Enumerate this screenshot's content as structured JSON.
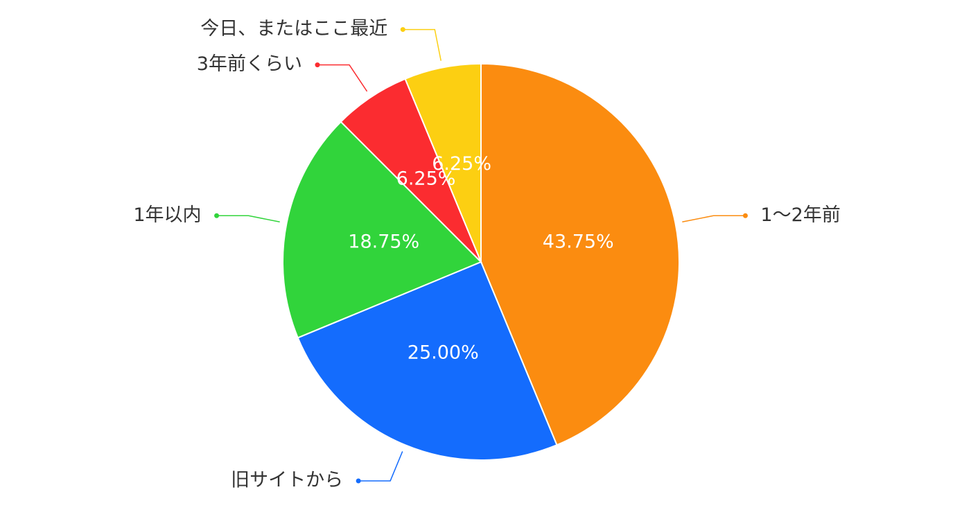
{
  "chart_data": {
    "type": "pie",
    "categories": [
      "1〜2年前",
      "旧サイトから",
      "1年以内",
      "3年前くらい",
      "今日、またはここ最近"
    ],
    "values": [
      43.75,
      25.0,
      18.75,
      6.25,
      6.25
    ],
    "value_labels": [
      "43.75%",
      "25.00%",
      "18.75%",
      "6.25%",
      "6.25%"
    ],
    "colors": [
      "#fb8c10",
      "#146cfd",
      "#31d43b",
      "#fb2c30",
      "#fccf12"
    ]
  }
}
